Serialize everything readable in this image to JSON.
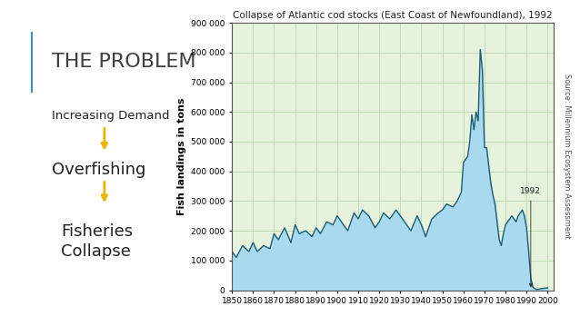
{
  "slide": {
    "heading": "THE PROBLEM",
    "flow": [
      "Increasing Demand",
      "Overfishing",
      "Fisheries\nCollapse"
    ]
  },
  "chart_data": {
    "type": "area",
    "title": "Collapse of Atlantic cod stocks (East Coast of Newfoundland), 1992",
    "y_label": "Fish landings in tons",
    "source": "Source: Millennium Ecosystem Assessment",
    "annotations": [
      {
        "text": "1992",
        "x": 1992
      }
    ],
    "x": [
      1850,
      1852,
      1855,
      1858,
      1860,
      1862,
      1865,
      1868,
      1870,
      1872,
      1875,
      1878,
      1880,
      1882,
      1885,
      1888,
      1890,
      1892,
      1895,
      1898,
      1900,
      1902,
      1905,
      1908,
      1910,
      1912,
      1915,
      1918,
      1920,
      1922,
      1925,
      1928,
      1930,
      1932,
      1935,
      1938,
      1940,
      1942,
      1945,
      1948,
      1950,
      1952,
      1955,
      1957,
      1959,
      1960,
      1962,
      1963,
      1964,
      1965,
      1966,
      1967,
      1968,
      1969,
      1970,
      1971,
      1972,
      1973,
      1974,
      1975,
      1976,
      1977,
      1978,
      1979,
      1980,
      1982,
      1983,
      1984,
      1985,
      1986,
      1987,
      1988,
      1989,
      1990,
      1991,
      1992,
      1993,
      1994,
      1995,
      1997,
      2000
    ],
    "values": [
      130000,
      110000,
      150000,
      130000,
      160000,
      130000,
      150000,
      140000,
      190000,
      170000,
      210000,
      160000,
      220000,
      190000,
      200000,
      180000,
      210000,
      190000,
      230000,
      220000,
      250000,
      230000,
      200000,
      260000,
      240000,
      270000,
      250000,
      210000,
      230000,
      260000,
      240000,
      270000,
      250000,
      230000,
      200000,
      250000,
      220000,
      180000,
      240000,
      260000,
      270000,
      290000,
      280000,
      300000,
      330000,
      430000,
      450000,
      500000,
      590000,
      540000,
      600000,
      570000,
      810000,
      740000,
      480000,
      480000,
      420000,
      360000,
      320000,
      290000,
      230000,
      170000,
      150000,
      190000,
      220000,
      240000,
      250000,
      240000,
      230000,
      250000,
      260000,
      270000,
      250000,
      210000,
      130000,
      40000,
      10000,
      5000,
      2000,
      5000,
      8000
    ],
    "color": "#a9d9ef",
    "xlim": [
      1850,
      2003
    ],
    "xticks": [
      1850,
      1860,
      1870,
      1880,
      1890,
      1900,
      1910,
      1920,
      1930,
      1940,
      1950,
      1960,
      1970,
      1980,
      1990,
      2000
    ],
    "ylim": [
      0,
      900000
    ],
    "yticks": [
      0,
      {
        "value": 100000,
        "label": "100 000"
      },
      {
        "value": 200000,
        "label": "200 000"
      },
      {
        "value": 300000,
        "label": "300 000"
      },
      {
        "value": 400000,
        "label": "400 000"
      },
      {
        "value": 500000,
        "label": "500 000"
      },
      {
        "value": 600000,
        "label": "600 000"
      },
      {
        "value": 700000,
        "label": "700 000"
      },
      {
        "value": 800000,
        "label": "800 000"
      },
      {
        "value": 900000,
        "label": "900 000"
      }
    ],
    "grid": true
  }
}
